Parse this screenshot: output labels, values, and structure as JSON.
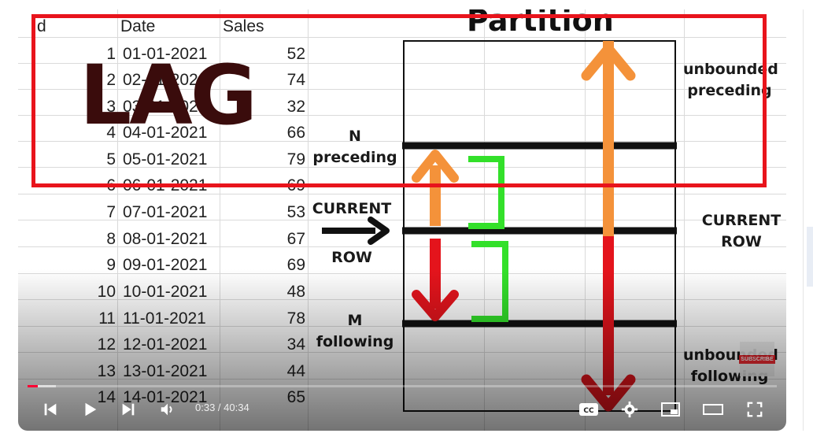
{
  "video": {
    "spreadsheet": {
      "headers": [
        "d",
        "Date",
        "Sales"
      ],
      "rows": [
        {
          "id": "1",
          "date": "01-01-2021",
          "sales": "52"
        },
        {
          "id": "2",
          "date": "02-01-2021",
          "sales": "74"
        },
        {
          "id": "3",
          "date": "03-01-2021",
          "sales": "32"
        },
        {
          "id": "4",
          "date": "04-01-2021",
          "sales": "66"
        },
        {
          "id": "5",
          "date": "05-01-2021",
          "sales": "79"
        },
        {
          "id": "6",
          "date": "06-01-2021",
          "sales": "69"
        },
        {
          "id": "7",
          "date": "07-01-2021",
          "sales": "53"
        },
        {
          "id": "8",
          "date": "08-01-2021",
          "sales": "67"
        },
        {
          "id": "9",
          "date": "09-01-2021",
          "sales": "69"
        },
        {
          "id": "10",
          "date": "10-01-2021",
          "sales": "48"
        },
        {
          "id": "11",
          "date": "11-01-2021",
          "sales": "78"
        },
        {
          "id": "12",
          "date": "12-01-2021",
          "sales": "34"
        },
        {
          "id": "13",
          "date": "13-01-2021",
          "sales": "44"
        },
        {
          "id": "14",
          "date": "14-01-2021",
          "sales": "65"
        }
      ]
    },
    "overlay_title": "LAG",
    "partition_title": "Partition",
    "labels": {
      "n_preceding_1": "N",
      "n_preceding_2": "preceding",
      "current_1": "CURRENT",
      "current_2": "ROW",
      "m_following_1": "M",
      "m_following_2": "following",
      "unbounded_preceding_1": "unbounded",
      "unbounded_preceding_2": "preceding",
      "current_row_1": "CURRENT",
      "current_row_2": "ROW",
      "unbounded_following_1": "unbounded",
      "unbounded_following_2": "following"
    },
    "subscribe_label": "SUBSCRIBE"
  },
  "player": {
    "time_current": "0:33",
    "time_separator": " / ",
    "time_total": "40:34",
    "progress_played": 0.0136,
    "progress_buffered": 0.038,
    "colors": {
      "accent": "#ff0033",
      "highlight_box": "#e8141c",
      "arrow_orange": "#f4923a",
      "arrow_red": "#e4141c",
      "bracket_green": "#33e02a"
    }
  },
  "icons": [
    "previous-icon",
    "play-icon",
    "next-icon",
    "volume-icon",
    "captions-icon",
    "settings-gear-icon",
    "miniplayer-icon",
    "theater-mode-icon",
    "fullscreen-icon"
  ]
}
